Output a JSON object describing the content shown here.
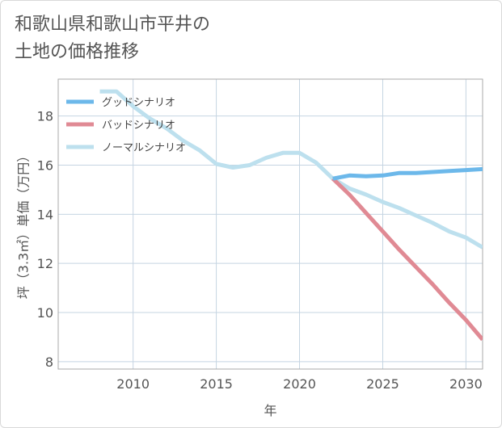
{
  "title": {
    "line1": "和歌山県和歌山市平井の",
    "line2": "土地の価格推移"
  },
  "chart_data": {
    "type": "line",
    "xlabel": "年",
    "ylabel": "坪（3.3㎡）単価（万円）",
    "xlim": [
      2005.5,
      2031
    ],
    "ylim": [
      7.7,
      19.5
    ],
    "xticks": [
      2010,
      2015,
      2020,
      2025,
      2030
    ],
    "yticks": [
      8,
      10,
      12,
      14,
      16,
      18
    ],
    "grid": true,
    "legend_position": "top-left",
    "series": [
      {
        "name": "グッドシナリオ",
        "color": "#6cb8ea",
        "x": [
          2022,
          2023,
          2024,
          2025,
          2026,
          2027,
          2028,
          2029,
          2030,
          2031
        ],
        "y": [
          15.45,
          15.58,
          15.55,
          15.58,
          15.68,
          15.68,
          15.72,
          15.76,
          15.8,
          15.84
        ]
      },
      {
        "name": "バッドシナリオ",
        "color": "#e08a94",
        "x": [
          2022,
          2023,
          2024,
          2025,
          2026,
          2027,
          2028,
          2029,
          2030,
          2031
        ],
        "y": [
          15.45,
          14.8,
          14.05,
          13.3,
          12.55,
          11.85,
          11.15,
          10.4,
          9.7,
          8.9
        ]
      },
      {
        "name": "ノーマルシナリオ",
        "color": "#bde0ee",
        "x": [
          2008,
          2009,
          2010,
          2011,
          2012,
          2013,
          2014,
          2015,
          2016,
          2017,
          2018,
          2019,
          2020,
          2021,
          2022,
          2023,
          2024,
          2025,
          2026,
          2027,
          2028,
          2029,
          2030,
          2031
        ],
        "y": [
          19.0,
          19.0,
          18.4,
          17.9,
          17.5,
          17.0,
          16.6,
          16.05,
          15.9,
          16.0,
          16.3,
          16.5,
          16.5,
          16.1,
          15.45,
          15.05,
          14.8,
          14.5,
          14.25,
          13.95,
          13.65,
          13.3,
          13.05,
          12.65
        ]
      }
    ]
  }
}
